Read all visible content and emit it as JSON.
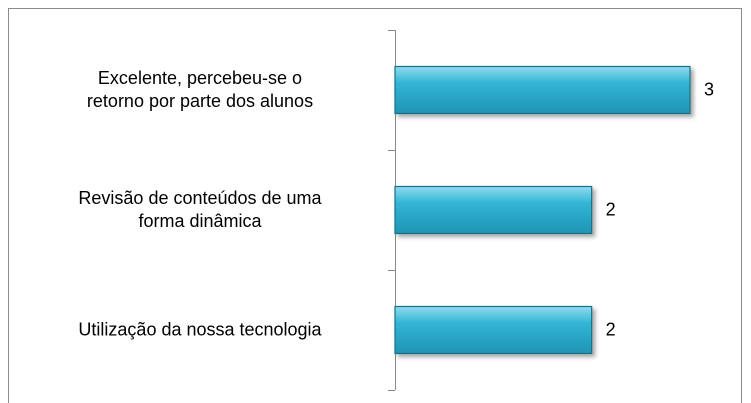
{
  "chart_data": {
    "type": "bar",
    "orientation": "horizontal",
    "categories": [
      "Excelente, percebeu-se o\nretorno por parte dos alunos",
      "Revisão de conteúdos de uma\nforma dinâmica",
      "Utilização da nossa tecnologia"
    ],
    "values": [
      3,
      2,
      2
    ],
    "color": "#33b5d6"
  }
}
